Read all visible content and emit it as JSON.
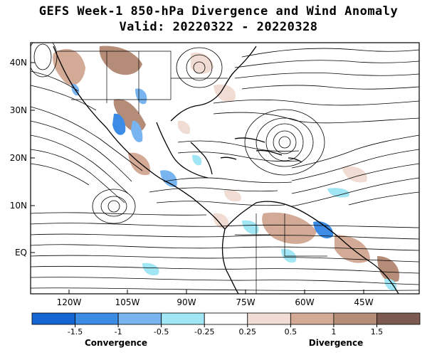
{
  "header": {
    "title": "GEFS Week-1 850-hPa Divergence and Wind Anomaly",
    "valid_line": "Valid: 20220322 - 20220328"
  },
  "map": {
    "lat_labels": [
      "40N",
      "30N",
      "20N",
      "10N",
      "EQ"
    ],
    "lon_labels": [
      "120W",
      "105W",
      "90W",
      "75W",
      "60W",
      "45W"
    ],
    "land_fill": "#ffffff",
    "streamline_color": "#000000",
    "coastline_color": "#000000"
  },
  "colorbar": {
    "colors": [
      "#1464d2",
      "#3c8ce6",
      "#78b4f0",
      "#a0e6f5",
      "#ffffff",
      "#f0dcd2",
      "#d2aa96",
      "#b48c78",
      "#7d5a50"
    ],
    "tick_labels": [
      "-1.5",
      "-1",
      "-0.5",
      "-0.25",
      "0.25",
      "0.5",
      "1",
      "1.5"
    ],
    "convergence_label": "Convergence",
    "divergence_label": "Divergence"
  }
}
